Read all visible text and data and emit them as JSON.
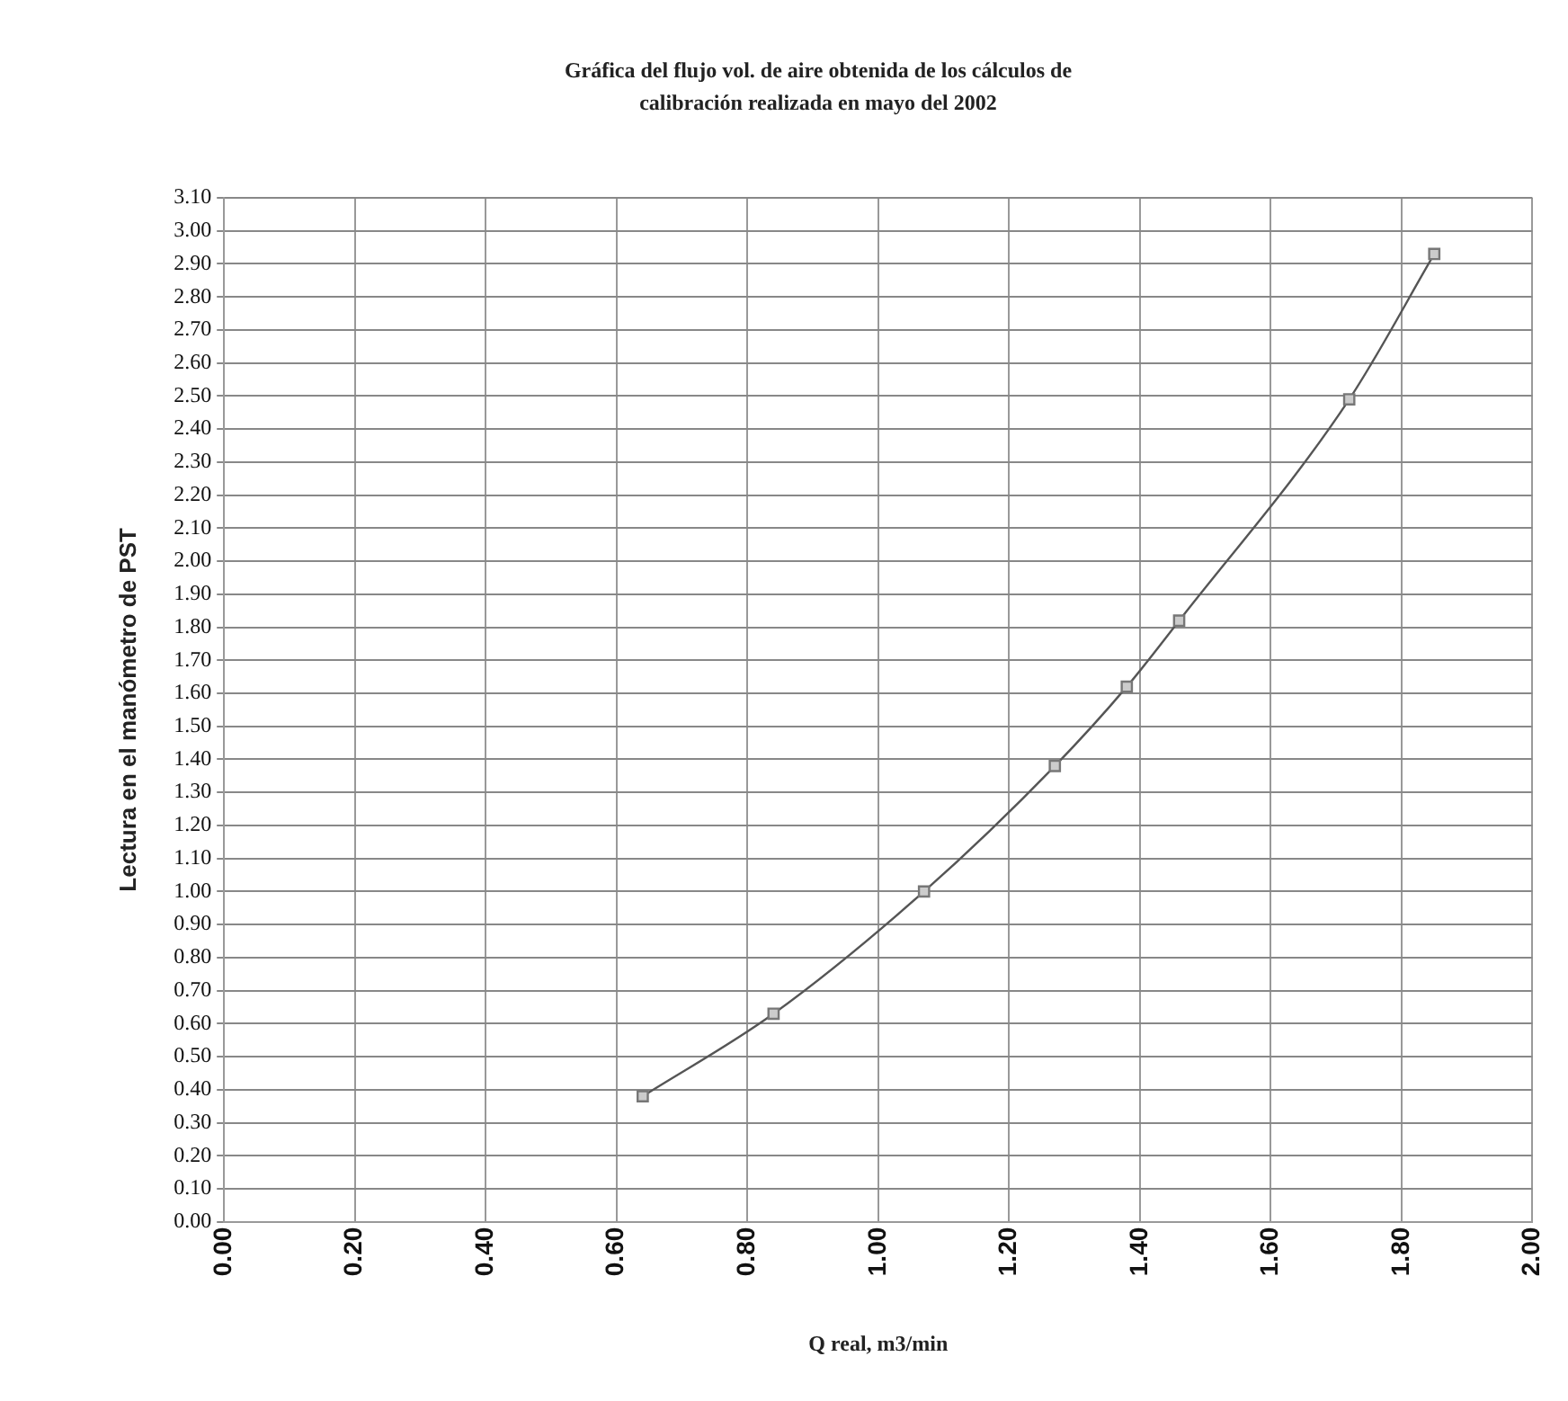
{
  "chart_data": {
    "type": "line",
    "title": "Gráfica del flujo vol. de aire obtenida de los cálculos de calibración realizada en mayo del 2002",
    "xlabel": "Q real, m3/min",
    "ylabel": "Lectura en el manómetro de PST",
    "series": [
      {
        "color": "#555555",
        "x": [
          0.64,
          0.84,
          1.07,
          1.27,
          1.38,
          1.46,
          1.72,
          1.85
        ],
        "values": [
          0.38,
          0.63,
          1.0,
          1.38,
          1.62,
          1.82,
          2.49,
          2.93
        ]
      }
    ],
    "marker": "square",
    "grid": true,
    "legend": false,
    "xlim": [
      0,
      2
    ],
    "xticks": [
      {
        "value": 0,
        "label": "0.00"
      },
      {
        "value": 0.2,
        "label": "0.20"
      },
      {
        "value": 0.4,
        "label": "0.40"
      },
      {
        "value": 0.6,
        "label": "0.60"
      },
      {
        "value": 0.8,
        "label": "0.80"
      },
      {
        "value": 1,
        "label": "1.00"
      },
      {
        "value": 1.2,
        "label": "1.20"
      },
      {
        "value": 1.4,
        "label": "1.40"
      },
      {
        "value": 1.6,
        "label": "1.60"
      },
      {
        "value": 1.8,
        "label": "1.80"
      },
      {
        "value": 2,
        "label": "2.00"
      }
    ],
    "ylim": [
      0,
      3.1
    ],
    "yticks": [
      {
        "value": 0,
        "label": "0.00"
      },
      {
        "value": 0.1,
        "label": "0.10"
      },
      {
        "value": 0.2,
        "label": "0.20"
      },
      {
        "value": 0.3,
        "label": "0.30"
      },
      {
        "value": 0.4,
        "label": "0.40"
      },
      {
        "value": 0.5,
        "label": "0.50"
      },
      {
        "value": 0.6,
        "label": "0.60"
      },
      {
        "value": 0.7,
        "label": "0.70"
      },
      {
        "value": 0.8,
        "label": "0.80"
      },
      {
        "value": 0.9,
        "label": "0.90"
      },
      {
        "value": 1,
        "label": "1.00"
      },
      {
        "value": 1.1,
        "label": "1.10"
      },
      {
        "value": 1.2,
        "label": "1.20"
      },
      {
        "value": 1.3,
        "label": "1.30"
      },
      {
        "value": 1.4,
        "label": "1.40"
      },
      {
        "value": 1.5,
        "label": "1.50"
      },
      {
        "value": 1.6,
        "label": "1.60"
      },
      {
        "value": 1.7,
        "label": "1.70"
      },
      {
        "value": 1.8,
        "label": "1.80"
      },
      {
        "value": 1.9,
        "label": "1.90"
      },
      {
        "value": 2,
        "label": "2.00"
      },
      {
        "value": 2.1,
        "label": "2.10"
      },
      {
        "value": 2.2,
        "label": "2.20"
      },
      {
        "value": 2.3,
        "label": "2.30"
      },
      {
        "value": 2.4,
        "label": "2.40"
      },
      {
        "value": 2.5,
        "label": "2.50"
      },
      {
        "value": 2.6,
        "label": "2.60"
      },
      {
        "value": 2.7,
        "label": "2.70"
      },
      {
        "value": 2.8,
        "label": "2.80"
      },
      {
        "value": 2.9,
        "label": "2.90"
      },
      {
        "value": 3,
        "label": "3.00"
      },
      {
        "value": 3.1,
        "label": "3.10"
      }
    ]
  }
}
